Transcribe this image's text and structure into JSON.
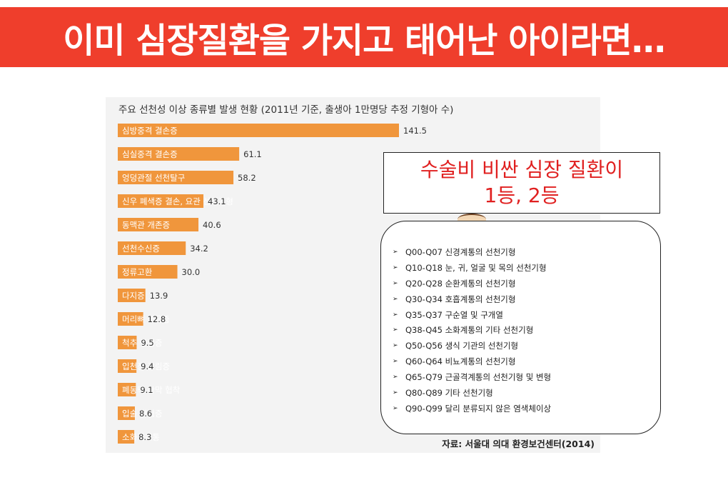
{
  "banner": {
    "title": "이미 심장질환을 가지고 태어난 아이라면…"
  },
  "chart_data": {
    "type": "bar",
    "orientation": "horizontal",
    "title": "주요 선천성 이상 종류별 발생 현황 (2011년 기준, 출생아 1만명당 추정 기형아 수)",
    "categories": [
      "심방중격 결손증",
      "심실중격 결손증",
      "엉덩관절 선천탈구",
      "신우 폐색증 결손, 요관 선천기형",
      "동맥관 개존증",
      "선천수신증",
      "정류고환",
      "다지증",
      "머리뼈 붙음증",
      "척추 갈림증",
      "입천장 갈림증",
      "폐동맥 판막 협착",
      "입술 갈림증",
      "소화기계통"
    ],
    "values": [
      141.5,
      61.1,
      58.2,
      43.1,
      40.6,
      34.2,
      30.0,
      13.9,
      12.8,
      9.5,
      9.4,
      9.1,
      8.6,
      8.3
    ],
    "value_labels": [
      "141.5",
      "61.1",
      "58.2",
      "43.1",
      "40.6",
      "34.2",
      "30.0",
      "13.9",
      "12.8",
      "9.5",
      "9.4",
      "9.1",
      "8.6",
      "8.3"
    ],
    "source": "자료: 서울대 의대 환경보건센터(2014)",
    "bar_color": "#f0963c"
  },
  "callout": {
    "line1": "수술비 비싼 심장 질환이",
    "line2": "1등, 2등"
  },
  "code_list": [
    "Q00-Q07 신경계통의 선천기형",
    "Q10-Q18 눈, 귀, 얼굴 및 목의 선천기형",
    "Q20-Q28 순환계통의 선천기형",
    "Q30-Q34 호흡계통의 선천기형",
    "Q35-Q37 구순열 및 구개열",
    "Q38-Q45 소화계통의 기타 선천기형",
    "Q50-Q56 생식 기관의 선천기형",
    "Q60-Q64 비뇨계통의 선천기형",
    "Q65-Q79 근골격계통의 선천기형 및 변형",
    "Q80-Q89 기타 선천기형",
    "Q90-Q99 달리 분류되지 않은 염색체이상"
  ],
  "list_bullet": "➢"
}
